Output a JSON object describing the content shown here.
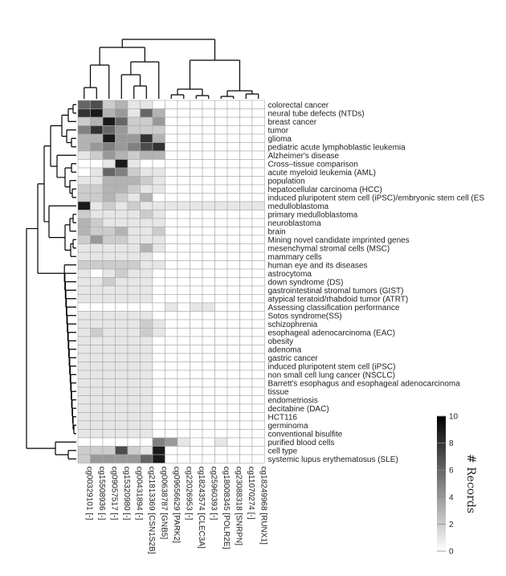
{
  "chart_data": {
    "type": "heatmap",
    "columns": [
      "cg00329101 [-]",
      "cg15508936 [-]",
      "cg09057517 [-]",
      "cg15320980 [-]",
      "cg00431894 [-]",
      "cg21813369 [CSN1S2B]",
      "cg00638787 [GNB5]",
      "cg09656629 [PARK2]",
      "cg22026953 [-]",
      "cg18243574 [CLEC3A]",
      "cg25960393 [-]",
      "cg18008345 [POLR2E]",
      "cg23088318 [SNRPN]",
      "cg11070274 [-]",
      "cg18249968 [RUNX1]"
    ],
    "rows": [
      "colorectal cancer",
      "neural tube defects (NTDs)",
      "breast cancer",
      "tumor",
      "glioma",
      "pediatric acute lymphoblastic leukemia",
      "Alzheimer's disease",
      "Cross–tissue comparison",
      "acute myeloid leukemia (AML)",
      "population",
      "hepatocellular carcinoma (HCC)",
      "induced pluripotent stem cell (iPSC)/embryonic stem cell (ES",
      "medulloblastoma",
      "primary medulloblastoma",
      "neuroblastoma",
      "brain",
      "Mining novel candidate imprinted genes",
      "mesenchymal stromal cells (MSC)",
      "mammary cells",
      "human eye and its diseases",
      "astrocytoma",
      "down syndrome (DS)",
      "gastrointestinal stromal tumors (GIST)",
      "atypical teratoid/rhabdoid tumor (ATRT)",
      "Assessing classification performance",
      "Sotos syndrome(SS)",
      "schizophrenia",
      "esophageal adenocarcinoma (EAC)",
      "obesity",
      "adenoma",
      "gastric cancer",
      "induced pluripotent stem cell (iPSC)",
      "non small cell lung cancer (NSCLC)",
      "Barrett's esophagus and esophageal adenocarcinoma",
      "tissue",
      "endometriosis",
      "decitabine (DAC)",
      "HCT116",
      "germinoma",
      "conventional bisulfite",
      "purified blood cells",
      "cell type",
      "systemic lupus erythematosus (SLE)"
    ],
    "values": [
      [
        6,
        7,
        2,
        3,
        1,
        1,
        0,
        0,
        0,
        0,
        0,
        0,
        0,
        0,
        0
      ],
      [
        8,
        9,
        3,
        4,
        1,
        6,
        3,
        0,
        0,
        0,
        0,
        0,
        0,
        0,
        0
      ],
      [
        2,
        3,
        9,
        6,
        2,
        2,
        4,
        0,
        0,
        0,
        0,
        0,
        0,
        0,
        0
      ],
      [
        5,
        8,
        6,
        4,
        2,
        2,
        2,
        0,
        0,
        0,
        0,
        0,
        0,
        0,
        0
      ],
      [
        3,
        3,
        9,
        4,
        4,
        8,
        3,
        0,
        0,
        0,
        0,
        0,
        0,
        0,
        0
      ],
      [
        3,
        4,
        5,
        4,
        5,
        7,
        8,
        0,
        0,
        0,
        0,
        0,
        0,
        0,
        0
      ],
      [
        1,
        2,
        4,
        3,
        2,
        3,
        3,
        0,
        0,
        0,
        0,
        0,
        0,
        0,
        0
      ],
      [
        0,
        0,
        1,
        9,
        1,
        0,
        0,
        0,
        0,
        0,
        0,
        0,
        0,
        0,
        0
      ],
      [
        0,
        1,
        6,
        5,
        2,
        1,
        1,
        0,
        0,
        0,
        0,
        0,
        0,
        0,
        0
      ],
      [
        1,
        1,
        3,
        3,
        3,
        2,
        1,
        0,
        0,
        0,
        0,
        0,
        0,
        0,
        0
      ],
      [
        2,
        2,
        3,
        3,
        2,
        1,
        1,
        0,
        0,
        0,
        0,
        0,
        0,
        0,
        0
      ],
      [
        2,
        2,
        3,
        2,
        1,
        3,
        0,
        0,
        0,
        0,
        0,
        0,
        0,
        0,
        0
      ],
      [
        9,
        1,
        2,
        1,
        2,
        1,
        1,
        1,
        1,
        1,
        1,
        1,
        1,
        1,
        1
      ],
      [
        2,
        1,
        1,
        1,
        1,
        2,
        1,
        0,
        0,
        0,
        0,
        0,
        0,
        0,
        0
      ],
      [
        3,
        2,
        1,
        1,
        1,
        1,
        1,
        0,
        0,
        0,
        0,
        0,
        0,
        0,
        0
      ],
      [
        3,
        2,
        2,
        3,
        1,
        1,
        2,
        0,
        0,
        0,
        0,
        0,
        0,
        0,
        0
      ],
      [
        2,
        4,
        2,
        2,
        1,
        1,
        1,
        0,
        0,
        0,
        0,
        0,
        0,
        0,
        0
      ],
      [
        1,
        1,
        1,
        1,
        1,
        3,
        1,
        0,
        0,
        0,
        0,
        0,
        0,
        0,
        0
      ],
      [
        1,
        1,
        1,
        1,
        1,
        1,
        0,
        0,
        0,
        0,
        0,
        0,
        0,
        0,
        0
      ],
      [
        2,
        2,
        2,
        2,
        2,
        1,
        1,
        0,
        0,
        0,
        0,
        0,
        0,
        0,
        0
      ],
      [
        1,
        0,
        1,
        2,
        1,
        1,
        0,
        0,
        0,
        0,
        0,
        0,
        0,
        0,
        0
      ],
      [
        1,
        1,
        2,
        1,
        1,
        1,
        0,
        0,
        0,
        0,
        0,
        0,
        0,
        0,
        0
      ],
      [
        1,
        1,
        1,
        1,
        1,
        1,
        0,
        0,
        0,
        0,
        0,
        0,
        0,
        0,
        0
      ],
      [
        1,
        1,
        1,
        1,
        1,
        1,
        0,
        0,
        0,
        0,
        0,
        0,
        0,
        0,
        0
      ],
      [
        0,
        0,
        0,
        0,
        0,
        0,
        0,
        1,
        0,
        1,
        1,
        0,
        0,
        0,
        0
      ],
      [
        1,
        1,
        1,
        1,
        1,
        1,
        0,
        0,
        0,
        0,
        0,
        0,
        0,
        0,
        0
      ],
      [
        1,
        1,
        1,
        1,
        1,
        2,
        1,
        0,
        0,
        0,
        0,
        0,
        0,
        0,
        0
      ],
      [
        1,
        2,
        1,
        1,
        1,
        2,
        1,
        0,
        0,
        0,
        0,
        0,
        0,
        0,
        0
      ],
      [
        1,
        1,
        1,
        1,
        1,
        1,
        0,
        0,
        0,
        0,
        0,
        0,
        0,
        0,
        0
      ],
      [
        1,
        1,
        1,
        1,
        1,
        1,
        0,
        0,
        0,
        0,
        0,
        0,
        0,
        0,
        0
      ],
      [
        1,
        1,
        1,
        1,
        1,
        1,
        0,
        0,
        0,
        0,
        0,
        0,
        0,
        0,
        0
      ],
      [
        1,
        1,
        1,
        1,
        1,
        1,
        0,
        0,
        0,
        0,
        0,
        0,
        0,
        0,
        0
      ],
      [
        1,
        1,
        1,
        1,
        1,
        1,
        0,
        0,
        0,
        0,
        0,
        0,
        0,
        0,
        0
      ],
      [
        1,
        1,
        1,
        1,
        1,
        1,
        0,
        0,
        0,
        0,
        0,
        0,
        0,
        0,
        0
      ],
      [
        1,
        1,
        1,
        1,
        1,
        1,
        0,
        0,
        0,
        0,
        0,
        0,
        0,
        0,
        0
      ],
      [
        1,
        1,
        1,
        1,
        1,
        1,
        0,
        0,
        0,
        0,
        0,
        0,
        0,
        0,
        0
      ],
      [
        1,
        1,
        1,
        1,
        1,
        1,
        0,
        0,
        0,
        0,
        0,
        0,
        0,
        0,
        0
      ],
      [
        1,
        1,
        1,
        1,
        1,
        1,
        0,
        0,
        0,
        0,
        0,
        0,
        0,
        0,
        0
      ],
      [
        1,
        1,
        1,
        1,
        1,
        1,
        0,
        0,
        0,
        0,
        0,
        0,
        0,
        0,
        0
      ],
      [
        1,
        1,
        1,
        1,
        1,
        1,
        0,
        0,
        0,
        0,
        0,
        0,
        0,
        0,
        0
      ],
      [
        0,
        0,
        0,
        0,
        0,
        0,
        5,
        4,
        1,
        0,
        0,
        1,
        0,
        0,
        0
      ],
      [
        2,
        2,
        2,
        7,
        2,
        1,
        9,
        0,
        0,
        0,
        0,
        0,
        0,
        0,
        0
      ],
      [
        2,
        4,
        4,
        4,
        4,
        6,
        9,
        0,
        0,
        0,
        0,
        0,
        0,
        0,
        0
      ]
    ],
    "colorbar": {
      "title": "# Records",
      "min": 0,
      "max": 10,
      "ticks": [
        0,
        2,
        4,
        6,
        8,
        10
      ]
    },
    "dendrograms": {
      "rows": true,
      "columns": true
    }
  }
}
